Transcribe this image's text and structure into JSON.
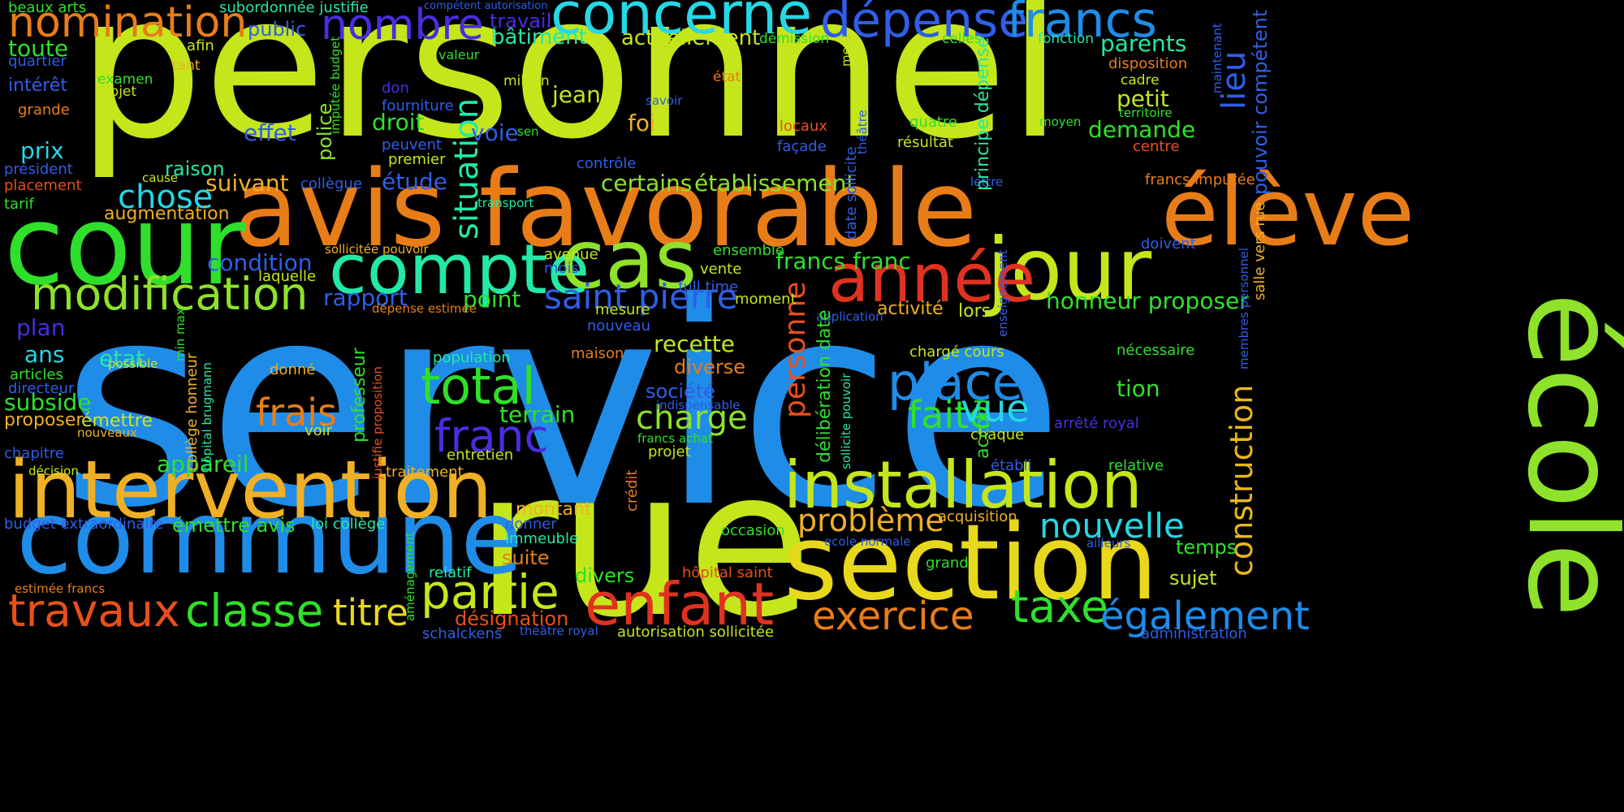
{
  "colors": {
    "background": "#000000",
    "yellow_green": "#c5e61b",
    "blue": "#1f8ce8",
    "orange": "#e87d18",
    "green": "#2fe02b",
    "teal": "#23e8a8",
    "cyan": "#24d8e6",
    "indigo": "#4a2de0",
    "red": "#e03220",
    "amber": "#f0b025",
    "royal": "#2f5ee8",
    "lime": "#8ee22a"
  },
  "words": [
    {
      "text": "personnel",
      "color": "#c5e61b"
    },
    {
      "text": "service",
      "color": "#1f8ce8"
    },
    {
      "text": "rue",
      "color": "#c5e61b"
    },
    {
      "text": "avis favorable",
      "color": "#e87d18"
    },
    {
      "text": "école",
      "color": "#8ee22a"
    },
    {
      "text": "élève",
      "color": "#e87d18"
    },
    {
      "text": "cour",
      "color": "#2fe02b"
    },
    {
      "text": "commune",
      "color": "#1f8ce8"
    },
    {
      "text": "intervention",
      "color": "#f0b025"
    },
    {
      "text": "section",
      "color": "#e8d81b"
    },
    {
      "text": "installation",
      "color": "#c5e61b"
    },
    {
      "text": "compte",
      "color": "#23e8a8"
    },
    {
      "text": "cas",
      "color": "#8ee22a"
    },
    {
      "text": "jour",
      "color": "#c5e61b"
    },
    {
      "text": "année",
      "color": "#e03220"
    },
    {
      "text": "concerne",
      "color": "#24d8e6"
    },
    {
      "text": "dépense",
      "color": "#2f5ee8"
    },
    {
      "text": "francs",
      "color": "#1f8ce8"
    },
    {
      "text": "nomination",
      "color": "#e87d18"
    },
    {
      "text": "nombre",
      "color": "#4a2de0"
    },
    {
      "text": "modification",
      "color": "#8ee22a"
    },
    {
      "text": "enfant",
      "color": "#e03220"
    },
    {
      "text": "travaux",
      "color": "#e8501b"
    },
    {
      "text": "classe",
      "color": "#2fe02b"
    },
    {
      "text": "total",
      "color": "#2fe02b"
    },
    {
      "text": "place",
      "color": "#1f8ce8"
    },
    {
      "text": "partie",
      "color": "#c5e61b"
    },
    {
      "text": "taxe",
      "color": "#2fe02b"
    },
    {
      "text": "également",
      "color": "#1f8ce8"
    },
    {
      "text": "exercice",
      "color": "#e87d18"
    },
    {
      "text": "franc",
      "color": "#4a2de0"
    },
    {
      "text": "situation",
      "color": "#23e8a8"
    },
    {
      "text": "saint pierre",
      "color": "#2f5ee8"
    },
    {
      "text": "frais",
      "color": "#e87d18"
    },
    {
      "text": "faite",
      "color": "#2fe02b"
    },
    {
      "text": "vue",
      "color": "#24d8e6"
    },
    {
      "text": "nouvelle",
      "color": "#24d8e6"
    },
    {
      "text": "problème",
      "color": "#f0b025"
    },
    {
      "text": "titre",
      "color": "#e8d81b"
    },
    {
      "text": "chose",
      "color": "#24d8e6"
    },
    {
      "text": "charge",
      "color": "#8ee22a"
    },
    {
      "text": "construction",
      "color": "#e8b81b"
    },
    {
      "text": "lieu",
      "color": "#2f5ee8"
    },
    {
      "text": "personne",
      "color": "#e8501b"
    },
    {
      "text": "toute",
      "color": "#2fe02b"
    },
    {
      "text": "bâtiment",
      "color": "#23e8a8"
    },
    {
      "text": "actuellement",
      "color": "#c5e61b"
    },
    {
      "text": "parents",
      "color": "#23e8a8"
    },
    {
      "text": "public",
      "color": "#2f5ee8"
    },
    {
      "text": "travail",
      "color": "#4a2de0"
    },
    {
      "text": "subordonnée justifie",
      "color": "#23e8a8"
    },
    {
      "text": "beaux arts",
      "color": "#2fe02b"
    },
    {
      "text": "compétent autorisation",
      "color": "#2f5ee8"
    },
    {
      "text": "démission",
      "color": "#2fe02b"
    },
    {
      "text": "fonction",
      "color": "#23e8a8"
    },
    {
      "text": "celles",
      "color": "#2fe02b"
    },
    {
      "text": "quartier",
      "color": "#2f5ee8"
    },
    {
      "text": "afin",
      "color": "#c5e61b"
    },
    {
      "text": "valeur",
      "color": "#2fe02b"
    },
    {
      "text": "disposition",
      "color": "#e87d18"
    },
    {
      "text": "tant",
      "color": "#f0b025"
    },
    {
      "text": "intérêt",
      "color": "#2f5ee8"
    },
    {
      "text": "examen",
      "color": "#2fe02b"
    },
    {
      "text": "objet",
      "color": "#c5e61b"
    },
    {
      "text": "million",
      "color": "#c5e61b"
    },
    {
      "text": "état",
      "color": "#e87d18"
    },
    {
      "text": "cadre",
      "color": "#c5e61b"
    },
    {
      "text": "grande",
      "color": "#e87d18"
    },
    {
      "text": "don",
      "color": "#4a2de0"
    },
    {
      "text": "jean",
      "color": "#c5e61b"
    },
    {
      "text": "fourniture",
      "color": "#2f5ee8"
    },
    {
      "text": "savoir",
      "color": "#2f5ee8"
    },
    {
      "text": "petit",
      "color": "#c5e61b"
    },
    {
      "text": "territoire",
      "color": "#2fe02b"
    },
    {
      "text": "droit",
      "color": "#2fe02b"
    },
    {
      "text": "foi",
      "color": "#f0b025"
    },
    {
      "text": "locaux",
      "color": "#e8501b"
    },
    {
      "text": "quatre",
      "color": "#2fe02b"
    },
    {
      "text": "moyen",
      "color": "#2fe02b"
    },
    {
      "text": "demande",
      "color": "#2fe02b"
    },
    {
      "text": "effet",
      "color": "#2f5ee8"
    },
    {
      "text": "voie",
      "color": "#2f5ee8"
    },
    {
      "text": "sen",
      "color": "#2fe02b"
    },
    {
      "text": "façade",
      "color": "#2f5ee8"
    },
    {
      "text": "résultat",
      "color": "#c5e61b"
    },
    {
      "text": "centre",
      "color": "#e8501b"
    },
    {
      "text": "prix",
      "color": "#24d8e6"
    },
    {
      "text": "peuvent",
      "color": "#2f5ee8"
    },
    {
      "text": "premier",
      "color": "#c5e61b"
    },
    {
      "text": "contrôle",
      "color": "#2f5ee8"
    },
    {
      "text": "président",
      "color": "#2f5ee8"
    },
    {
      "text": "raison",
      "color": "#23e8a8"
    },
    {
      "text": "cause",
      "color": "#c5e61b"
    },
    {
      "text": "placement",
      "color": "#e8501b"
    },
    {
      "text": "suivant",
      "color": "#f0b025"
    },
    {
      "text": "collègue",
      "color": "#2f5ee8"
    },
    {
      "text": "étude",
      "color": "#2f5ee8"
    },
    {
      "text": "certains",
      "color": "#8ee22a"
    },
    {
      "text": "établissement",
      "color": "#8ee22a"
    },
    {
      "text": "lettre",
      "color": "#2f5ee8"
    },
    {
      "text": "francs imputée",
      "color": "#e87d18"
    },
    {
      "text": "tarif",
      "color": "#2fe02b"
    },
    {
      "text": "augmentation",
      "color": "#f0b025"
    },
    {
      "text": "transport",
      "color": "#23e8a8"
    },
    {
      "text": "condition",
      "color": "#2f5ee8"
    },
    {
      "text": "sollicitée pouvoir",
      "color": "#f0b025"
    },
    {
      "text": "avenue",
      "color": "#c5e61b"
    },
    {
      "text": "mois",
      "color": "#2f5ee8"
    },
    {
      "text": "ensemble",
      "color": "#2fe02b"
    },
    {
      "text": "vente",
      "color": "#c5e61b"
    },
    {
      "text": "doivent",
      "color": "#2f5ee8"
    },
    {
      "text": "francs franc",
      "color": "#2fe02b"
    },
    {
      "text": "laquelle",
      "color": "#c5e61b"
    },
    {
      "text": "rapport",
      "color": "#2f5ee8"
    },
    {
      "text": "point",
      "color": "#2fe02b"
    },
    {
      "text": "moment",
      "color": "#c5e61b"
    },
    {
      "text": "full time",
      "color": "#2f5ee8"
    },
    {
      "text": "mesure",
      "color": "#c5e61b"
    },
    {
      "text": "nouveau",
      "color": "#2f5ee8"
    },
    {
      "text": "activité",
      "color": "#f0b025"
    },
    {
      "text": "lors",
      "color": "#c5e61b"
    },
    {
      "text": "honneur proposer",
      "color": "#2fe02b"
    },
    {
      "text": "plan",
      "color": "#4a2de0"
    },
    {
      "text": "dépense estimée",
      "color": "#e87d18"
    },
    {
      "text": "application",
      "color": "#2f5ee8"
    },
    {
      "text": "ans",
      "color": "#24d8e6"
    },
    {
      "text": "etat",
      "color": "#23e8a8"
    },
    {
      "text": "population",
      "color": "#23e8a8"
    },
    {
      "text": "recette",
      "color": "#c5e61b"
    },
    {
      "text": "maison",
      "color": "#e87d18"
    },
    {
      "text": "diverse",
      "color": "#e87d18"
    },
    {
      "text": "chargé cours",
      "color": "#c5e61b"
    },
    {
      "text": "nécessaire",
      "color": "#2fe02b"
    },
    {
      "text": "possible",
      "color": "#c5e61b"
    },
    {
      "text": "donné",
      "color": "#f0b025"
    },
    {
      "text": "articles",
      "color": "#2fe02b"
    },
    {
      "text": "directeur",
      "color": "#2f5ee8"
    },
    {
      "text": "société",
      "color": "#2f5ee8"
    },
    {
      "text": "indispensable",
      "color": "#2f5ee8"
    },
    {
      "text": "tion",
      "color": "#2fe02b"
    },
    {
      "text": "subside",
      "color": "#2fe02b"
    },
    {
      "text": "proposer",
      "color": "#f0b025"
    },
    {
      "text": "émettre",
      "color": "#c5e61b"
    },
    {
      "text": "nouveaux",
      "color": "#f0b025"
    },
    {
      "text": "voir",
      "color": "#c5e61b"
    },
    {
      "text": "terrain",
      "color": "#2fe02b"
    },
    {
      "text": "arrêté royal",
      "color": "#4a2de0"
    },
    {
      "text": "francs achat",
      "color": "#2fe02b"
    },
    {
      "text": "projet",
      "color": "#c5e61b"
    },
    {
      "text": "chaque",
      "color": "#c5e61b"
    },
    {
      "text": "chapitre",
      "color": "#2f5ee8"
    },
    {
      "text": "entretien",
      "color": "#c5e61b"
    },
    {
      "text": "appareil",
      "color": "#2fe02b"
    },
    {
      "text": "établi",
      "color": "#2f5ee8"
    },
    {
      "text": "relative",
      "color": "#2fe02b"
    },
    {
      "text": "décision",
      "color": "#c5e61b"
    },
    {
      "text": "traitement",
      "color": "#f0b025"
    },
    {
      "text": "acquisition",
      "color": "#f0b025"
    },
    {
      "text": "montant",
      "color": "#f0b025"
    },
    {
      "text": "donner",
      "color": "#2f5ee8"
    },
    {
      "text": "crédit",
      "color": "#e87d18"
    },
    {
      "text": "budget extraordinaire",
      "color": "#2f5ee8"
    },
    {
      "text": "émettre avis",
      "color": "#2fe02b"
    },
    {
      "text": "loi collège",
      "color": "#23e8a8"
    },
    {
      "text": "immeuble",
      "color": "#23e8a8"
    },
    {
      "text": "occasion",
      "color": "#2fe02b"
    },
    {
      "text": "ecole normale",
      "color": "#2f5ee8"
    },
    {
      "text": "ailleurs",
      "color": "#2f5ee8"
    },
    {
      "text": "temps",
      "color": "#2fe02b"
    },
    {
      "text": "suite",
      "color": "#e87d18"
    },
    {
      "text": "grand",
      "color": "#2fe02b"
    },
    {
      "text": "relatif",
      "color": "#23e8a8"
    },
    {
      "text": "hôpital saint",
      "color": "#e8501b"
    },
    {
      "text": "divers",
      "color": "#2fe02b"
    },
    {
      "text": "sujet",
      "color": "#c5e61b"
    },
    {
      "text": "estimée francs",
      "color": "#e87d18"
    },
    {
      "text": "désignation",
      "color": "#e8501b"
    },
    {
      "text": "schalckens",
      "color": "#2f5ee8"
    },
    {
      "text": "théâtre royal",
      "color": "#2f5ee8"
    },
    {
      "text": "autorisation sollicitée",
      "color": "#c5e61b"
    },
    {
      "text": "administration",
      "color": "#2f5ee8"
    },
    {
      "text": "principe dépense",
      "color": "#23e8a8"
    },
    {
      "text": "date sollicite",
      "color": "#2f5ee8"
    },
    {
      "text": "théâtre",
      "color": "#2f5ee8"
    },
    {
      "text": "ment",
      "color": "#c5e61b"
    },
    {
      "text": "police",
      "color": "#8ee22a"
    },
    {
      "text": "imputée budget",
      "color": "#2fe02b"
    },
    {
      "text": "pouvoir compétent",
      "color": "#2f5ee8"
    },
    {
      "text": "maintenant",
      "color": "#2f5ee8"
    },
    {
      "text": "salle vers rue",
      "color": "#f0b025"
    },
    {
      "text": "membres personnel",
      "color": "#2f5ee8"
    },
    {
      "text": "enseignement",
      "color": "#2f5ee8"
    },
    {
      "text": "délibération date",
      "color": "#2fe02b"
    },
    {
      "text": "sollicite pouvoir",
      "color": "#23e8a8"
    },
    {
      "text": "accord",
      "color": "#2fe02b"
    },
    {
      "text": "min max",
      "color": "#2fe02b"
    },
    {
      "text": "collège honneur",
      "color": "#f0b025"
    },
    {
      "text": "hôpital brugmann",
      "color": "#23e8a8"
    },
    {
      "text": "professeur",
      "color": "#2fe02b"
    },
    {
      "text": "justifie proposition",
      "color": "#e8501b"
    },
    {
      "text": "aménagement",
      "color": "#2fe02b"
    }
  ]
}
